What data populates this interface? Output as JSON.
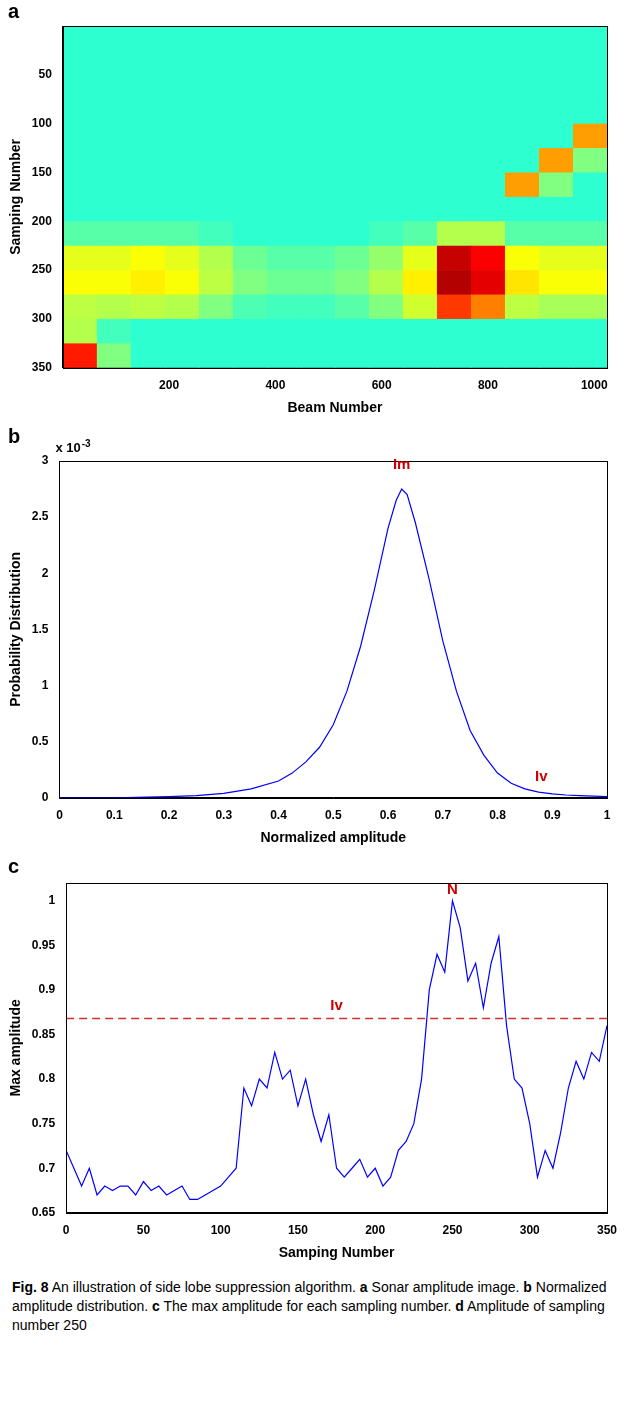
{
  "chart_data": [
    {
      "label": "a",
      "type": "heatmap",
      "color": "jet",
      "grid": false,
      "x_label": "Beam Number",
      "y_label": "Samping Number",
      "xlim": [
        0,
        1024
      ],
      "ylim": [
        0,
        350
      ],
      "xticks": [
        200,
        400,
        600,
        800,
        1000
      ],
      "yticks": [
        50,
        100,
        150,
        200,
        250,
        300,
        350
      ],
      "zlim": [
        0,
        1
      ],
      "x_bins": [
        0,
        64,
        128,
        192,
        256,
        320,
        384,
        448,
        512,
        576,
        640,
        704,
        768,
        832,
        896,
        960,
        1024
      ],
      "y_bins": [
        0,
        25,
        50,
        75,
        100,
        125,
        150,
        175,
        200,
        225,
        250,
        275,
        300,
        325,
        350
      ],
      "cells": [
        [
          0.42,
          0.42,
          0.42,
          0.42,
          0.42,
          0.42,
          0.42,
          0.42,
          0.42,
          0.42,
          0.42,
          0.42,
          0.42,
          0.42,
          0.42,
          0.42
        ],
        [
          0.42,
          0.42,
          0.42,
          0.42,
          0.42,
          0.42,
          0.42,
          0.42,
          0.42,
          0.42,
          0.42,
          0.42,
          0.42,
          0.42,
          0.42,
          0.42
        ],
        [
          0.42,
          0.42,
          0.42,
          0.42,
          0.42,
          0.42,
          0.42,
          0.42,
          0.42,
          0.42,
          0.42,
          0.42,
          0.42,
          0.42,
          0.42,
          0.42
        ],
        [
          0.42,
          0.42,
          0.42,
          0.42,
          0.42,
          0.42,
          0.42,
          0.42,
          0.42,
          0.42,
          0.42,
          0.42,
          0.42,
          0.42,
          0.42,
          0.42
        ],
        [
          0.42,
          0.42,
          0.42,
          0.42,
          0.42,
          0.42,
          0.42,
          0.42,
          0.42,
          0.42,
          0.42,
          0.42,
          0.42,
          0.42,
          0.42,
          0.72
        ],
        [
          0.42,
          0.42,
          0.42,
          0.42,
          0.42,
          0.42,
          0.42,
          0.42,
          0.42,
          0.42,
          0.42,
          0.42,
          0.42,
          0.42,
          0.72,
          0.5
        ],
        [
          0.42,
          0.42,
          0.42,
          0.42,
          0.42,
          0.42,
          0.42,
          0.42,
          0.42,
          0.42,
          0.42,
          0.42,
          0.42,
          0.72,
          0.5,
          0.42
        ],
        [
          0.42,
          0.42,
          0.42,
          0.42,
          0.42,
          0.42,
          0.42,
          0.42,
          0.42,
          0.42,
          0.42,
          0.42,
          0.42,
          0.42,
          0.42,
          0.42
        ],
        [
          0.46,
          0.46,
          0.46,
          0.46,
          0.44,
          0.42,
          0.42,
          0.42,
          0.42,
          0.44,
          0.46,
          0.55,
          0.55,
          0.46,
          0.46,
          0.46
        ],
        [
          0.6,
          0.6,
          0.62,
          0.6,
          0.55,
          0.48,
          0.46,
          0.46,
          0.48,
          0.52,
          0.6,
          0.93,
          0.88,
          0.62,
          0.6,
          0.6
        ],
        [
          0.62,
          0.62,
          0.64,
          0.62,
          0.56,
          0.5,
          0.48,
          0.48,
          0.5,
          0.55,
          0.64,
          0.95,
          0.9,
          0.65,
          0.62,
          0.62
        ],
        [
          0.56,
          0.55,
          0.56,
          0.55,
          0.5,
          0.45,
          0.44,
          0.44,
          0.46,
          0.5,
          0.58,
          0.82,
          0.75,
          0.56,
          0.54,
          0.54
        ],
        [
          0.55,
          0.44,
          0.42,
          0.42,
          0.42,
          0.42,
          0.42,
          0.42,
          0.42,
          0.42,
          0.42,
          0.42,
          0.42,
          0.42,
          0.42,
          0.42
        ],
        [
          0.85,
          0.5,
          0.42,
          0.42,
          0.42,
          0.42,
          0.42,
          0.42,
          0.42,
          0.42,
          0.42,
          0.42,
          0.42,
          0.42,
          0.42,
          0.42
        ]
      ]
    },
    {
      "label": "b",
      "type": "line",
      "color": "#0000ff",
      "grid": false,
      "x_label": "Normalized amplitude",
      "y_label": "Probability Distribution",
      "y_multiplier": {
        "base": "x 10",
        "exponent": "-3"
      },
      "xlim": [
        0,
        1
      ],
      "ylim": [
        0,
        0.003
      ],
      "xticks": [
        0,
        0.1,
        0.2,
        0.3,
        0.4,
        0.5,
        0.6,
        0.7,
        0.8,
        0.9,
        1
      ],
      "yticks": [
        0,
        {
          "value": 0.0005,
          "label": "0.5"
        },
        {
          "value": 0.001,
          "label": "1"
        },
        {
          "value": 0.0015,
          "label": "1.5"
        },
        {
          "value": 0.002,
          "label": "2"
        },
        {
          "value": 0.0025,
          "label": "2.5"
        },
        {
          "value": 0.003,
          "label": "3"
        }
      ],
      "x": [
        0,
        0.1,
        0.2,
        0.25,
        0.3,
        0.35,
        0.4,
        0.425,
        0.45,
        0.475,
        0.5,
        0.525,
        0.55,
        0.575,
        0.6,
        0.615,
        0.625,
        0.635,
        0.65,
        0.675,
        0.7,
        0.725,
        0.75,
        0.775,
        0.8,
        0.825,
        0.85,
        0.875,
        0.9,
        0.925,
        0.95,
        0.975,
        1
      ],
      "values": [
        0,
        0,
        1e-05,
        2e-05,
        4e-05,
        8e-05,
        0.00015,
        0.00022,
        0.00032,
        0.00045,
        0.00065,
        0.00095,
        0.00135,
        0.00185,
        0.0024,
        0.00265,
        0.00275,
        0.0027,
        0.00245,
        0.00195,
        0.0014,
        0.00095,
        0.0006,
        0.00038,
        0.00022,
        0.00013,
        8e-05,
        5e-05,
        3.5e-05,
        2.5e-05,
        2e-05,
        1.5e-05,
        1e-05
      ],
      "annotations": [
        {
          "text": "Im",
          "x": 0.625,
          "y": 0.0029
        },
        {
          "text": "Iv",
          "x": 0.88,
          "y": 0.00012
        }
      ]
    },
    {
      "label": "c",
      "type": "line",
      "color": "#0000ff",
      "grid": false,
      "x_label": "Samping Number",
      "y_label": "Max amplitude",
      "xlim": [
        0,
        350
      ],
      "ylim": [
        0.65,
        1.02
      ],
      "xticks": [
        0,
        50,
        100,
        150,
        200,
        250,
        300,
        350
      ],
      "yticks": [
        0.65,
        0.7,
        0.75,
        0.8,
        0.85,
        0.9,
        0.95,
        1
      ],
      "x": [
        0,
        5,
        10,
        15,
        20,
        25,
        30,
        35,
        40,
        45,
        50,
        55,
        60,
        65,
        70,
        75,
        80,
        85,
        90,
        95,
        100,
        105,
        110,
        115,
        120,
        125,
        130,
        135,
        140,
        145,
        150,
        155,
        160,
        165,
        170,
        175,
        180,
        185,
        190,
        195,
        200,
        205,
        210,
        215,
        220,
        225,
        230,
        235,
        240,
        245,
        250,
        255,
        260,
        265,
        270,
        275,
        280,
        285,
        290,
        295,
        300,
        305,
        310,
        315,
        320,
        325,
        330,
        335,
        340,
        345,
        350
      ],
      "values": [
        0.72,
        0.7,
        0.68,
        0.7,
        0.67,
        0.68,
        0.675,
        0.68,
        0.68,
        0.67,
        0.685,
        0.675,
        0.68,
        0.67,
        0.675,
        0.68,
        0.665,
        0.665,
        0.67,
        0.675,
        0.68,
        0.69,
        0.7,
        0.79,
        0.77,
        0.8,
        0.79,
        0.83,
        0.8,
        0.81,
        0.77,
        0.8,
        0.76,
        0.73,
        0.76,
        0.7,
        0.69,
        0.7,
        0.71,
        0.69,
        0.7,
        0.68,
        0.69,
        0.72,
        0.73,
        0.75,
        0.8,
        0.9,
        0.94,
        0.92,
        1.0,
        0.97,
        0.91,
        0.93,
        0.88,
        0.93,
        0.96,
        0.86,
        0.8,
        0.79,
        0.75,
        0.69,
        0.72,
        0.7,
        0.74,
        0.79,
        0.82,
        0.8,
        0.83,
        0.82,
        0.86
      ],
      "reference_lines": [
        {
          "y": 0.868,
          "color": "#d03030",
          "line_style": "dashed"
        }
      ],
      "annotations": [
        {
          "text": "N",
          "x": 250,
          "y": 1.004
        },
        {
          "text": "Iv",
          "x": 175,
          "y": 0.874
        }
      ]
    }
  ],
  "caption": {
    "figure": "Fig. 8",
    "title": "An illustration of side lobe suppression algorithm.",
    "parts": [
      {
        "label": "a",
        "text": "Sonar amplitude image."
      },
      {
        "label": "b",
        "text": "Normalized amplitude distribution."
      },
      {
        "label": "c",
        "text": "The max amplitude for each sampling number."
      },
      {
        "label": "d",
        "text": "Amplitude of sampling number 250"
      }
    ]
  }
}
